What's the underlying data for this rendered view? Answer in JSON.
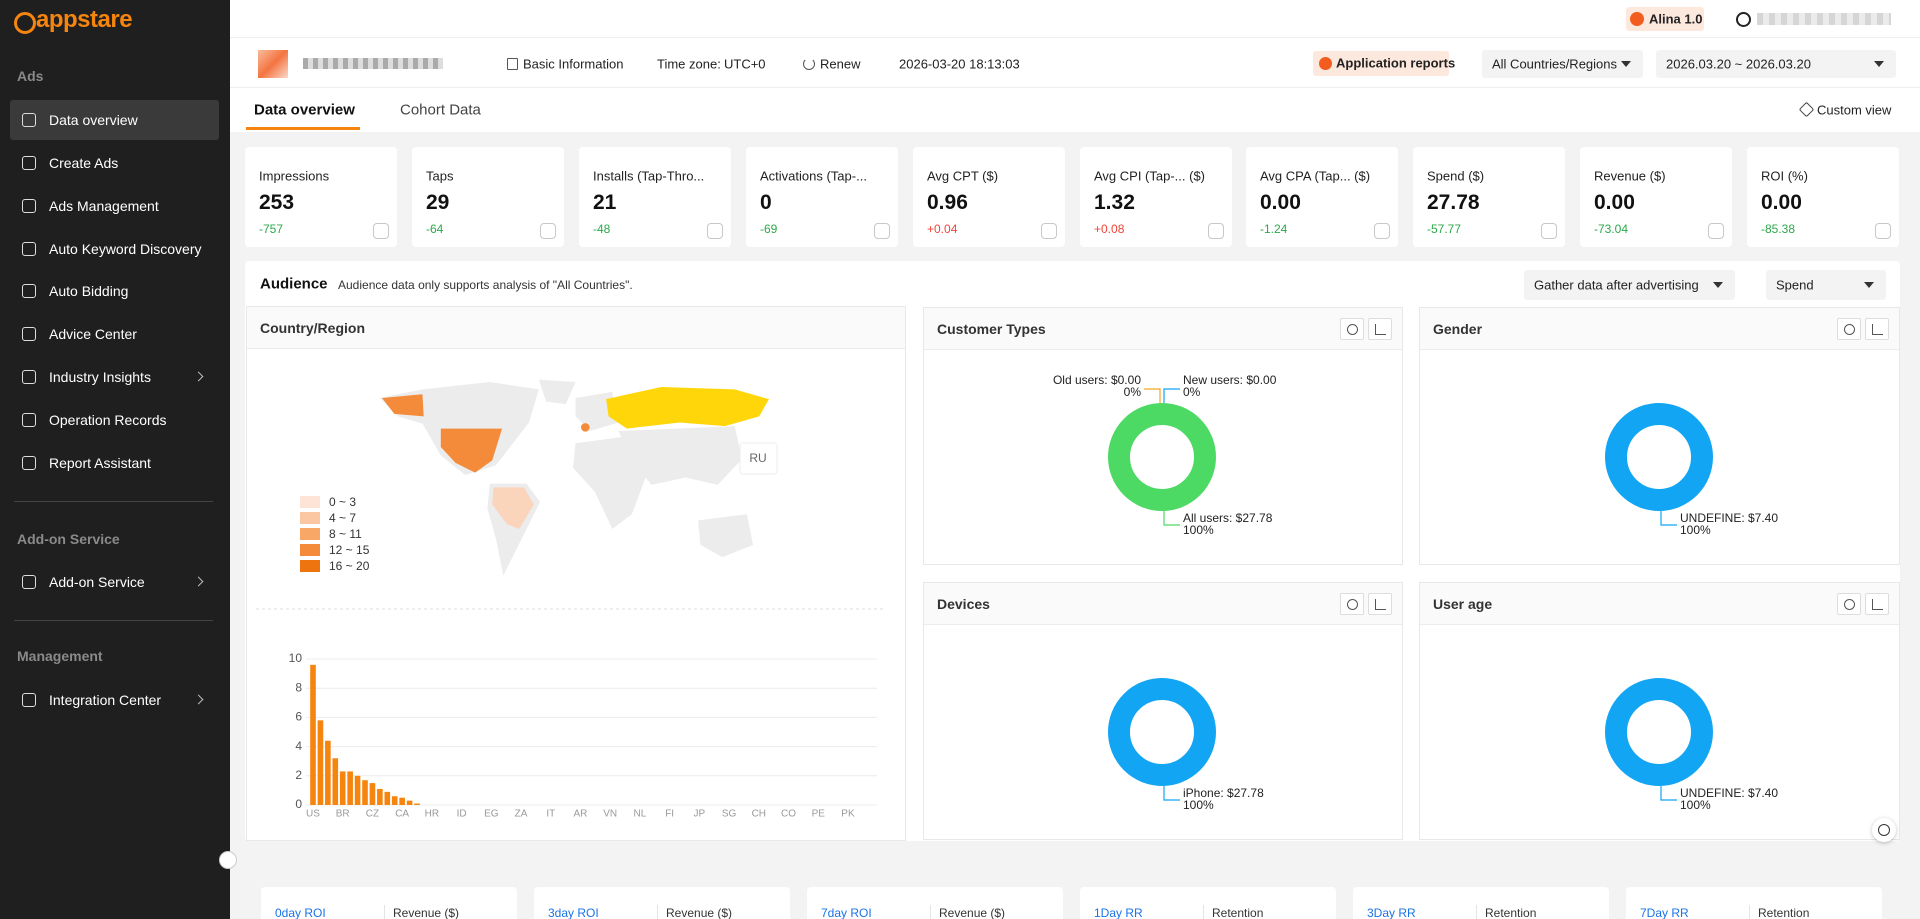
{
  "sidebar": {
    "logo": "appstare",
    "sections": [
      {
        "title": "Ads",
        "items": [
          "Data overview",
          "Create Ads",
          "Ads Management",
          "Auto Keyword Discovery",
          "Auto Bidding",
          "Advice Center",
          "Industry Insights",
          "Operation Records",
          "Report Assistant"
        ]
      },
      {
        "title": "Add-on Service",
        "items": [
          "Add-on Service"
        ]
      },
      {
        "title": "Management",
        "items": [
          "Integration Center"
        ]
      }
    ]
  },
  "topbar": {
    "badge": "Alina 1.0"
  },
  "header": {
    "basic_info": "Basic Information",
    "timezone_label": "Time zone:",
    "timezone": "UTC+0",
    "renew": "Renew",
    "timestamp": "2026-03-20 18:13:03",
    "app_reports": "Application reports",
    "region": "All Countries/Regions",
    "date_range": "2026.03.20 ~ 2026.03.20"
  },
  "tabs": [
    "Data overview",
    "Cohort Data"
  ],
  "custom_view": "Custom view",
  "metrics": [
    {
      "title": "Impressions",
      "value": "253",
      "delta": "-757"
    },
    {
      "title": "Taps",
      "value": "29",
      "delta": "-64"
    },
    {
      "title": "Installs (Tap-Thro...",
      "value": "21",
      "delta": "-48"
    },
    {
      "title": "Activations (Tap-...",
      "value": "0",
      "delta": "-69"
    },
    {
      "title": "Avg CPT ($)",
      "value": "0.96",
      "delta": "+0.04"
    },
    {
      "title": "Avg CPI (Tap-...  ($)",
      "value": "1.32",
      "delta": "+0.08"
    },
    {
      "title": "Avg CPA (Tap...  ($)",
      "value": "0.00",
      "delta": "-1.24"
    },
    {
      "title": "Spend ($)",
      "value": "27.78",
      "delta": "-57.77"
    },
    {
      "title": "Revenue ($)",
      "value": "0.00",
      "delta": "-73.04"
    },
    {
      "title": "ROI (%)",
      "value": "0.00",
      "delta": "-85.38"
    }
  ],
  "audience": {
    "title": "Audience",
    "note": "Audience data only supports analysis of \"All Countries\".",
    "gather": "Gather data after advertising",
    "metric": "Spend"
  },
  "country_panel": {
    "title": "Country/Region",
    "tooltip": "RU",
    "legend": [
      "0 ~ 3",
      "4 ~ 7",
      "8 ~ 11",
      "12 ~ 15",
      "16 ~ 20"
    ],
    "legend_colors": [
      "#fde4d6",
      "#fbc7a2",
      "#f8a766",
      "#f48b3b",
      "#ee7410"
    ]
  },
  "chart_data": [
    {
      "type": "bar",
      "color": "#f5850f",
      "ylim": [
        0,
        10
      ],
      "yticks": [
        0,
        2,
        4,
        6,
        8,
        10
      ],
      "grid": true,
      "categories": [
        "US",
        null,
        null,
        null,
        "BR",
        null,
        null,
        null,
        "CZ",
        null,
        null,
        null,
        "CA",
        null,
        null,
        null,
        "HR",
        null,
        null,
        null,
        "ID",
        null,
        null,
        null,
        "EG",
        null,
        null,
        null,
        "ZA",
        null,
        null,
        null,
        "IT",
        null,
        null,
        null,
        "AR",
        null,
        null,
        null,
        "VN",
        null,
        null,
        null,
        "NL",
        null,
        null,
        null,
        "FI",
        null,
        null,
        null,
        "JP",
        null,
        null,
        null,
        "SG",
        null,
        null,
        null,
        "CH",
        null,
        null,
        null,
        "CO",
        null,
        null,
        null,
        "PE",
        null,
        null,
        null,
        "PK",
        null,
        null,
        null
      ],
      "values": [
        9.6,
        5.8,
        4.4,
        3.2,
        2.3,
        2.3,
        2.0,
        1.7,
        1.5,
        1.1,
        0.9,
        0.6,
        0.5,
        0.3,
        0.1,
        0,
        0,
        0,
        0,
        0,
        0,
        0,
        0,
        0,
        0,
        0,
        0,
        0,
        0,
        0,
        0,
        0,
        0,
        0,
        0,
        0,
        0,
        0,
        0,
        0,
        0,
        0,
        0,
        0,
        0,
        0,
        0,
        0,
        0,
        0,
        0,
        0,
        0,
        0,
        0,
        0,
        0,
        0,
        0,
        0,
        0,
        0,
        0,
        0,
        0,
        0,
        0,
        0,
        0,
        0,
        0,
        0,
        0,
        0,
        0,
        0
      ]
    },
    {
      "type": "pie",
      "title": "Customer Types",
      "categories": [
        "Old users: $0.00",
        "New users: $0.00",
        "All users: $27.78"
      ],
      "values": [
        0,
        0,
        100
      ],
      "value_labels": [
        "0%",
        "0%",
        "100%"
      ],
      "colors": [
        "#f5a623",
        "#12a5f4",
        "#4cd964"
      ]
    },
    {
      "type": "pie",
      "title": "Gender",
      "categories": [
        "UNDEFINE: $7.40"
      ],
      "values": [
        100
      ],
      "value_labels": [
        "100%"
      ],
      "colors": [
        "#12a5f4"
      ]
    },
    {
      "type": "pie",
      "title": "Devices",
      "categories": [
        "iPhone: $27.78"
      ],
      "values": [
        100
      ],
      "value_labels": [
        "100%"
      ],
      "colors": [
        "#12a5f4"
      ]
    },
    {
      "type": "pie",
      "title": "User age",
      "categories": [
        "UNDEFINE: $7.40"
      ],
      "values": [
        100
      ],
      "value_labels": [
        "100%"
      ],
      "colors": [
        "#12a5f4"
      ]
    }
  ],
  "bottom_cards": [
    {
      "title": "0day ROI",
      "metric": "Revenue ($)"
    },
    {
      "title": "3day ROI",
      "metric": "Revenue ($)"
    },
    {
      "title": "7day ROI",
      "metric": "Revenue ($)"
    },
    {
      "title": "1Day RR",
      "metric": "Retention"
    },
    {
      "title": "3Day RR",
      "metric": "Retention"
    },
    {
      "title": "7Day RR",
      "metric": "Retention"
    }
  ]
}
